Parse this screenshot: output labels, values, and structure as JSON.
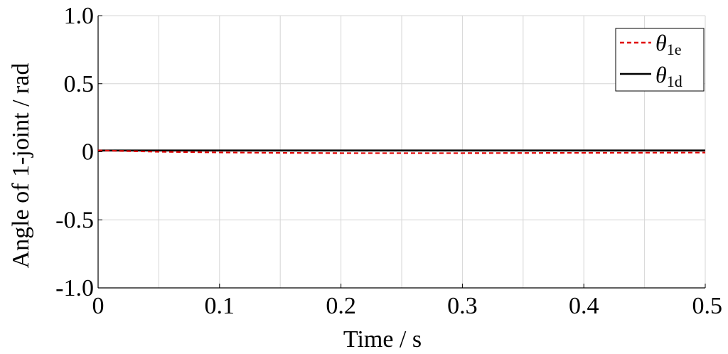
{
  "chart_data": {
    "type": "line",
    "title": "",
    "xlabel": "Time / s",
    "ylabel": "Angle of  1-joint / rad",
    "xlim": [
      0,
      0.5
    ],
    "ylim": [
      -1.0,
      1.0
    ],
    "x_ticks": [
      0,
      0.1,
      0.2,
      0.3,
      0.4,
      0.5
    ],
    "x_tick_labels": [
      "0",
      "0.1",
      "0.2",
      "0.3",
      "0.4",
      "0.5"
    ],
    "y_ticks": [
      1.0,
      0.5,
      0,
      -0.5,
      -1.0
    ],
    "y_tick_labels": [
      "1.0",
      "0.5",
      "0",
      "-0.5",
      "-1.0"
    ],
    "grid": true,
    "legend_position": "top-right",
    "series": [
      {
        "name": "θ1e",
        "name_main": "θ",
        "name_sub": "1e",
        "color": "#e00000",
        "style": "dashed",
        "x": [
          0,
          0.025,
          0.05,
          0.1,
          0.15,
          0.2,
          0.25,
          0.3,
          0.35,
          0.4,
          0.45,
          0.5
        ],
        "y": [
          0.01,
          0.005,
          0.0,
          -0.005,
          -0.008,
          -0.01,
          -0.01,
          -0.01,
          -0.009,
          -0.008,
          -0.007,
          -0.006
        ]
      },
      {
        "name": "θ1d",
        "name_main": "θ",
        "name_sub": "1d",
        "color": "#000000",
        "style": "solid",
        "x": [
          0,
          0.1,
          0.2,
          0.3,
          0.4,
          0.5
        ],
        "y": [
          0.01,
          0.01,
          0.01,
          0.01,
          0.01,
          0.01
        ]
      }
    ]
  }
}
